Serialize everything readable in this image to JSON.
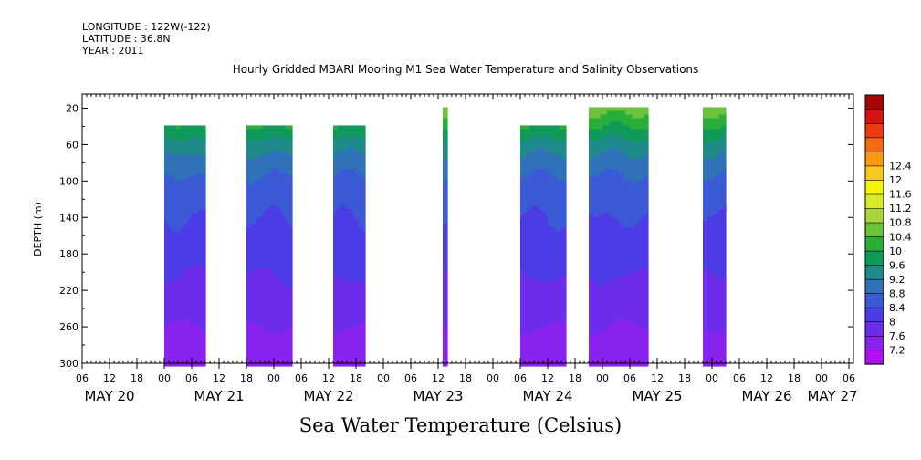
{
  "header": {
    "longitude": "LONGITUDE : 122W(-122)",
    "latitude": "LATITUDE : 36.8N",
    "year": "YEAR : 2011"
  },
  "chart_data": {
    "type": "heatmap",
    "title": "Hourly Gridded MBARI Mooring M1 Sea Water Temperature and Salinity Observations",
    "bottom_title": "Sea Water Temperature (Celsius)",
    "ylabel": "DEPTH (m)",
    "ylim": [
      300,
      0
    ],
    "y_ticks": [
      20,
      60,
      100,
      140,
      180,
      220,
      260,
      300
    ],
    "x_hour_ticks": [
      "06",
      "12",
      "18",
      "00",
      "06",
      "12",
      "18",
      "00",
      "06",
      "12",
      "18",
      "00",
      "06",
      "12",
      "18",
      "00",
      "06",
      "12",
      "18",
      "00",
      "06",
      "12",
      "18",
      "00",
      "06",
      "12",
      "18",
      "00",
      "06",
      "12",
      "18",
      "00"
    ],
    "x_day_labels": [
      "MAY 20",
      "MAY 21",
      "MAY 22",
      "MAY 23",
      "MAY 24",
      "MAY 25",
      "MAY 26",
      "MAY 27"
    ],
    "colorbar": {
      "levels": [
        7.2,
        7.6,
        8,
        8.4,
        8.8,
        9.2,
        9.6,
        10,
        10.4,
        10.8,
        11.2,
        11.6,
        12,
        12.4
      ],
      "colors": [
        "#b20ff2",
        "#8a22ee",
        "#6d2cea",
        "#4c3ce6",
        "#3a5ad6",
        "#2f72b8",
        "#1e8a8a",
        "#0f9a5a",
        "#2aae3a",
        "#6cc23a",
        "#a6d63a",
        "#d8ea2c",
        "#f6f500",
        "#f8c81e",
        "#f79a10",
        "#f46a12",
        "#ee3a10",
        "#d81212",
        "#a80606"
      ],
      "bar_ticks": [
        7.2,
        7.6,
        8,
        8.4,
        8.8,
        9.2,
        9.6,
        10,
        10.4,
        10.8,
        11.2,
        11.6,
        12,
        12.4
      ]
    },
    "data_segments": [
      {
        "start_hour": 0,
        "end_hour": 9,
        "top_depth": 40
      },
      {
        "start_hour": 18,
        "end_hour": 28,
        "top_depth": 40
      },
      {
        "start_hour": 37,
        "end_hour": 44,
        "top_depth": 40
      },
      {
        "start_hour": 61,
        "end_hour": 62,
        "top_depth": 20
      },
      {
        "start_hour": 78,
        "end_hour": 88,
        "top_depth": 40
      },
      {
        "start_hour": 93,
        "end_hour": 106,
        "top_depth": 20
      },
      {
        "start_hour": 118,
        "end_hour": 123,
        "top_depth": 20
      }
    ],
    "temperature_profile": [
      {
        "depth": 20,
        "temp": 10.6
      },
      {
        "depth": 40,
        "temp": 10.0
      },
      {
        "depth": 60,
        "temp": 9.4
      },
      {
        "depth": 80,
        "temp": 9.0
      },
      {
        "depth": 100,
        "temp": 8.7
      },
      {
        "depth": 140,
        "temp": 8.4
      },
      {
        "depth": 180,
        "temp": 8.15
      },
      {
        "depth": 220,
        "temp": 7.9
      },
      {
        "depth": 260,
        "temp": 7.6
      },
      {
        "depth": 300,
        "temp": 7.3
      }
    ]
  }
}
